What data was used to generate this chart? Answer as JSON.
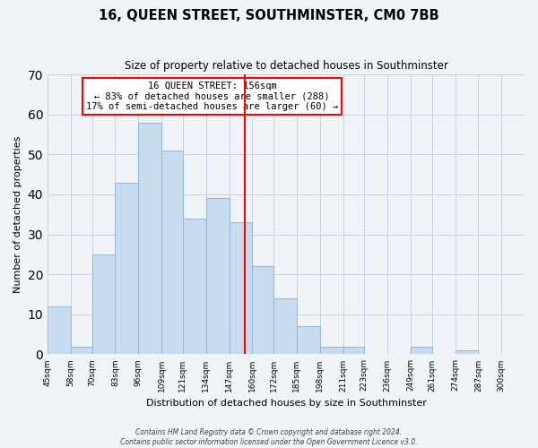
{
  "title": "16, QUEEN STREET, SOUTHMINSTER, CM0 7BB",
  "subtitle": "Size of property relative to detached houses in Southminster",
  "xlabel": "Distribution of detached houses by size in Southminster",
  "ylabel": "Number of detached properties",
  "bar_color": "#c8dcf0",
  "bar_edge_color": "#9ab8d8",
  "bin_labels": [
    "45sqm",
    "58sqm",
    "70sqm",
    "83sqm",
    "96sqm",
    "109sqm",
    "121sqm",
    "134sqm",
    "147sqm",
    "160sqm",
    "172sqm",
    "185sqm",
    "198sqm",
    "211sqm",
    "223sqm",
    "236sqm",
    "249sqm",
    "261sqm",
    "274sqm",
    "287sqm",
    "300sqm"
  ],
  "bin_edges": [
    45,
    58,
    70,
    83,
    96,
    109,
    121,
    134,
    147,
    160,
    172,
    185,
    198,
    211,
    223,
    236,
    249,
    261,
    274,
    287,
    300
  ],
  "counts": [
    12,
    2,
    25,
    43,
    58,
    51,
    34,
    39,
    33,
    22,
    14,
    7,
    2,
    2,
    0,
    0,
    2,
    0,
    1,
    0,
    0
  ],
  "vline_x": 156,
  "annotation_title": "16 QUEEN STREET: 156sqm",
  "annotation_line1": "← 83% of detached houses are smaller (288)",
  "annotation_line2": "17% of semi-detached houses are larger (60) →",
  "ylim": [
    0,
    70
  ],
  "yticks": [
    0,
    10,
    20,
    30,
    40,
    50,
    60,
    70
  ],
  "footnote1": "Contains HM Land Registry data © Crown copyright and database right 2024.",
  "footnote2": "Contains public sector information licensed under the Open Government Licence v3.0.",
  "background_color": "#f0f4f8",
  "grid_color": "#c8d4e0"
}
